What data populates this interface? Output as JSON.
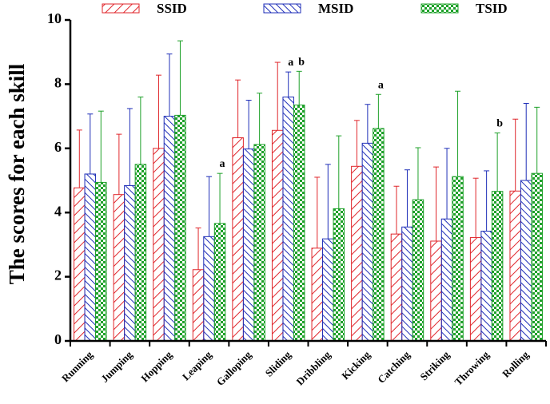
{
  "chart_data": {
    "type": "bar",
    "ylabel": "The scores for each skill",
    "xlabel": "",
    "ylim": [
      0,
      10
    ],
    "yticks": [
      "0",
      "2",
      "4",
      "6",
      "8",
      "10"
    ],
    "legend_placement": "top",
    "categories": [
      "Running",
      "Jumping",
      "Hopping",
      "Leaping",
      "Galloping",
      "Sliding",
      "Dribbling",
      "Kicking",
      "Catching",
      "Striking",
      "Throwing",
      "Rolling"
    ],
    "series": [
      {
        "name": "SSID",
        "color": "#e0262b",
        "pattern": "diagonal-hatch",
        "values": [
          4.77,
          4.56,
          6.0,
          2.22,
          6.33,
          6.56,
          2.89,
          5.44,
          3.33,
          3.11,
          3.22,
          4.67
        ],
        "error": [
          1.8,
          1.88,
          2.28,
          1.3,
          1.8,
          2.12,
          2.21,
          1.43,
          1.49,
          2.31,
          1.85,
          2.24
        ]
      },
      {
        "name": "MSID",
        "color": "#1f2fb8",
        "pattern": "reverse-diagonal-hatch",
        "values": [
          5.2,
          4.84,
          7.0,
          3.25,
          5.98,
          7.6,
          3.18,
          6.16,
          3.55,
          3.8,
          3.42,
          5.0
        ],
        "error": [
          1.87,
          2.4,
          1.94,
          1.87,
          1.52,
          0.78,
          2.32,
          1.21,
          1.78,
          2.2,
          1.88,
          2.4
        ]
      },
      {
        "name": "TSID",
        "color": "#1fa12a",
        "pattern": "checker",
        "values": [
          4.94,
          5.5,
          7.03,
          3.66,
          6.12,
          7.35,
          4.12,
          6.62,
          4.4,
          5.12,
          4.66,
          5.22
        ],
        "error": [
          2.22,
          2.1,
          2.32,
          1.56,
          1.6,
          1.05,
          2.27,
          1.06,
          1.62,
          2.66,
          1.82,
          2.06
        ]
      }
    ],
    "annotations": [
      {
        "category": "Leaping",
        "series": "TSID",
        "text": "a"
      },
      {
        "category": "Sliding",
        "series": "MSID",
        "text": "a"
      },
      {
        "category": "Sliding",
        "series": "TSID",
        "text": "b"
      },
      {
        "category": "Kicking",
        "series": "TSID",
        "text": "a"
      },
      {
        "category": "Throwing",
        "series": "TSID",
        "text": "b"
      }
    ]
  }
}
